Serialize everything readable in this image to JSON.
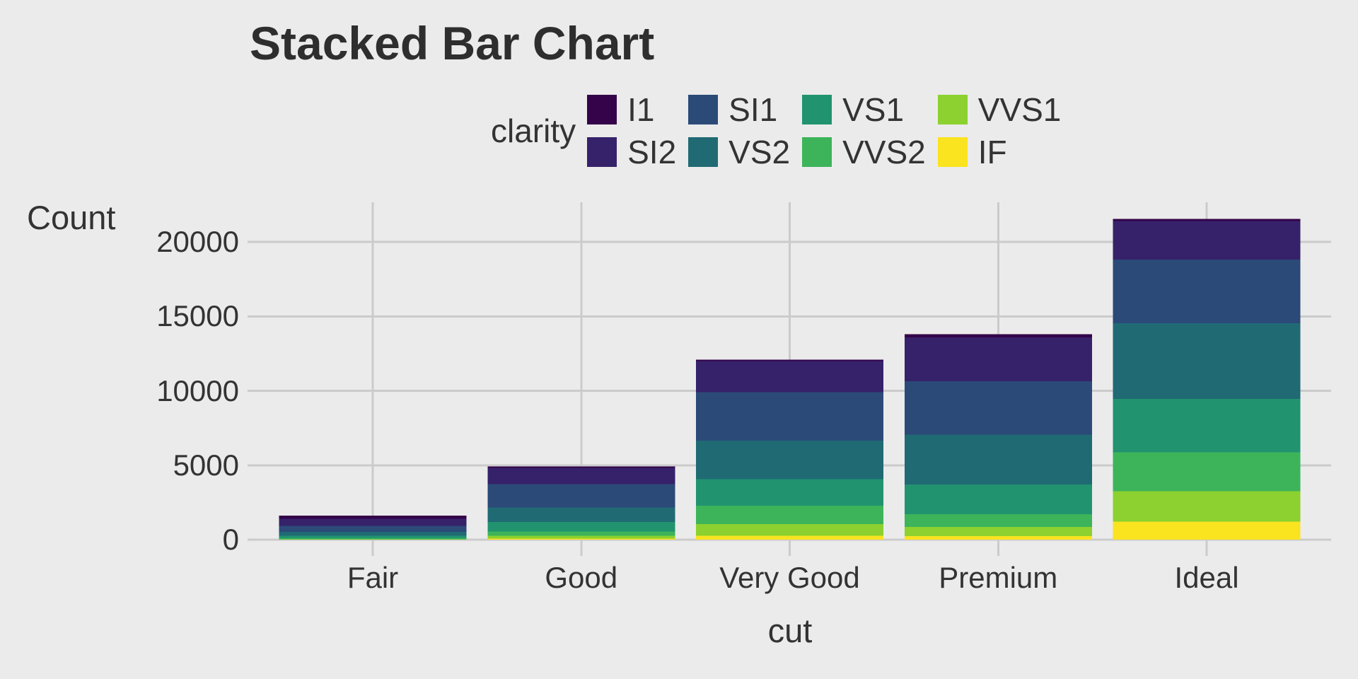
{
  "page": {
    "background": "#EBEBEB",
    "grid_color": "#CBCBCB",
    "text_color": "#333333",
    "title_color": "#2E2E2E"
  },
  "title": {
    "text": "Stacked Bar Chart"
  },
  "legend": {
    "title": "clarity",
    "rows": 2
  },
  "axes": {
    "y_title": "Count",
    "x_title": "cut",
    "y_tick_labels": [
      "0",
      "5000",
      "10000",
      "15000",
      "20000"
    ]
  },
  "chart_data": {
    "type": "bar",
    "stacked": true,
    "title": "Stacked Bar Chart",
    "xlabel": "cut",
    "ylabel": "Count",
    "categories": [
      "Fair",
      "Good",
      "Very Good",
      "Premium",
      "Ideal"
    ],
    "series": [
      {
        "name": "I1",
        "color": "#340349",
        "values": [
          210,
          96,
          84,
          205,
          146
        ]
      },
      {
        "name": "SI2",
        "color": "#36226A",
        "values": [
          466,
          1081,
          2100,
          2949,
          2598
        ]
      },
      {
        "name": "SI1",
        "color": "#2B4A78",
        "values": [
          408,
          1560,
          3240,
          3575,
          4282
        ]
      },
      {
        "name": "VS2",
        "color": "#206A74",
        "values": [
          261,
          978,
          2591,
          3357,
          5071
        ]
      },
      {
        "name": "VS1",
        "color": "#21946F",
        "values": [
          170,
          648,
          1775,
          1989,
          3589
        ]
      },
      {
        "name": "VVS2",
        "color": "#3DB45A",
        "values": [
          69,
          286,
          1235,
          870,
          2606
        ]
      },
      {
        "name": "VVS1",
        "color": "#8CD12F",
        "values": [
          17,
          186,
          789,
          616,
          2047
        ]
      },
      {
        "name": "IF",
        "color": "#FAE31F",
        "values": [
          9,
          71,
          268,
          230,
          1212
        ]
      }
    ],
    "stack_order": "first-series-on-top",
    "totals": [
      1610,
      4906,
      12082,
      13791,
      21551
    ],
    "y_ticks": [
      0,
      5000,
      10000,
      15000,
      20000
    ],
    "ylim": [
      -1078,
      22629
    ],
    "grid": "major-only",
    "legend_title": "clarity",
    "legend_position": "top",
    "legend_fill_order": "column-major"
  }
}
